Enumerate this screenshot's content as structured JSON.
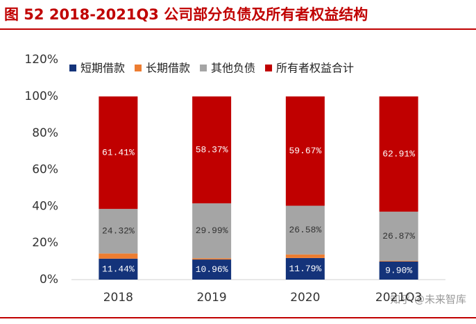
{
  "chart_data": {
    "type": "stacked_bar",
    "title": "图 52 2018-2021Q3 公司部分负债及所有者权益结构",
    "categories": [
      "2018",
      "2019",
      "2020",
      "2021Q3"
    ],
    "series": [
      {
        "name": "短期借款",
        "color": "#14337a",
        "values": [
          11.44,
          10.96,
          11.79,
          9.9
        ],
        "value_labels": [
          "11.44%",
          "10.96%",
          "11.79%",
          "9.90%"
        ]
      },
      {
        "name": "长期借款",
        "color": "#ed7d31",
        "values": [
          2.83,
          0.68,
          1.96,
          0.32
        ]
      },
      {
        "name": "其他负债",
        "color": "#a5a5a5",
        "values": [
          24.32,
          29.99,
          26.58,
          26.87
        ],
        "value_labels": [
          "24.32%",
          "29.99%",
          "26.58%",
          "26.87%"
        ]
      },
      {
        "name": "所有者权益合计",
        "color": "#c00000",
        "values": [
          61.41,
          58.37,
          59.67,
          62.91
        ],
        "value_labels": [
          "61.41%",
          "58.37%",
          "59.67%",
          "62.91%"
        ]
      }
    ],
    "ylim": [
      0,
      120
    ],
    "yticks": [
      {
        "value": 0,
        "label": "0%"
      },
      {
        "value": 20,
        "label": "20%"
      },
      {
        "value": 40,
        "label": "40%"
      },
      {
        "value": 60,
        "label": "60%"
      },
      {
        "value": 80,
        "label": "80%"
      },
      {
        "value": 100,
        "label": "100%"
      },
      {
        "value": 120,
        "label": "120%"
      }
    ],
    "watermark": "知乎 @未来智库"
  }
}
